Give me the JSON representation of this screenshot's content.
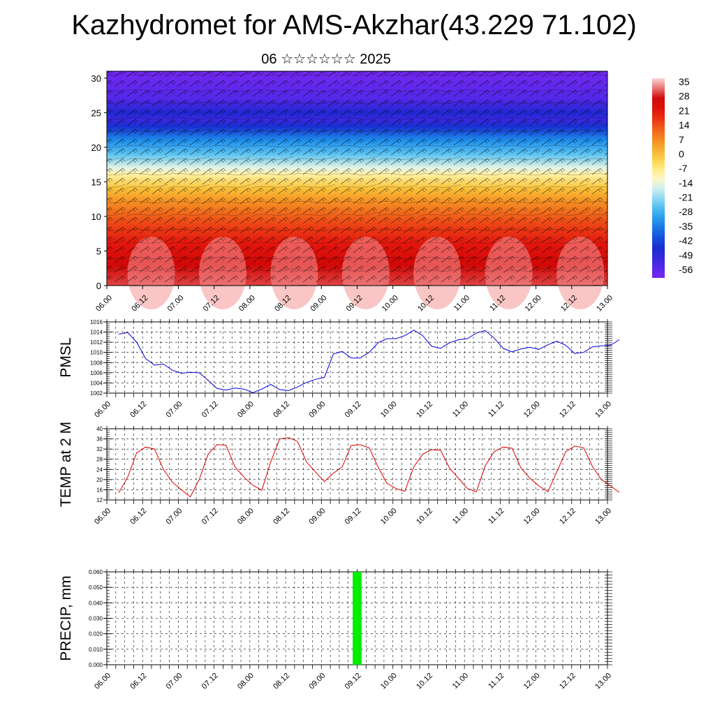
{
  "title": "Kazhydromet for AMS-Akzhar(43.229 71.102)",
  "subtitle": "06 ☆☆☆☆☆☆ 2025",
  "colors": {
    "pmsl_line": "#0000dd",
    "temp_line": "#dd0000",
    "precip_bar": "#00ee00",
    "grid": "#000000"
  },
  "chart_data": [
    {
      "type": "heatmap",
      "title": "",
      "xlabel": "",
      "ylabel": "",
      "xtick_labels": [
        "06.00",
        "06.12",
        "07.00",
        "07.12",
        "08.00",
        "08.12",
        "09.00",
        "09.12",
        "10.00",
        "10.12",
        "11.00",
        "11.12",
        "12.00",
        "12.12",
        "13.00"
      ],
      "ytick_labels": [
        "0",
        "5",
        "10",
        "15",
        "20",
        "25",
        "30"
      ],
      "ylim": [
        0,
        31
      ],
      "colorbar_labels": [
        "35",
        "28",
        "21",
        "14",
        "7",
        "0",
        "-7",
        "-14",
        "-21",
        "-28",
        "-35",
        "-42",
        "-49",
        "-56"
      ],
      "colorbar_range": [
        -59,
        38
      ],
      "temperature_profile": {
        "heights": [
          0,
          3,
          6,
          9,
          12,
          14,
          16,
          17,
          19,
          21,
          23,
          24,
          25,
          27,
          31
        ],
        "values": [
          31,
          27,
          22,
          16,
          8,
          1,
          -8,
          -14,
          -24,
          -32,
          -44,
          -50,
          -46,
          -54,
          -58
        ]
      },
      "overlay": "wind barbs"
    },
    {
      "type": "line",
      "title": "",
      "ylabel": "PMSL",
      "xtick_labels": [
        "06.00",
        "06.12",
        "07.00",
        "07.12",
        "08.00",
        "08.12",
        "09.00",
        "09.12",
        "10.00",
        "10.12",
        "11.00",
        "11.12",
        "12.00",
        "12.12",
        "13.00"
      ],
      "ytick_labels": [
        "1002",
        "1004",
        "1006",
        "1008",
        "1010",
        "1012",
        "1014",
        "1016"
      ],
      "ylim": [
        1002,
        1016
      ],
      "x_hours_step": 3,
      "series": [
        {
          "values": [
            1013.6,
            1013.9,
            1012.0,
            1008.8,
            1007.5,
            1007.7,
            1006.5,
            1005.9,
            1006.1,
            1006.0,
            1004.5,
            1002.9,
            1002.6,
            1003.0,
            1002.8,
            1002.1,
            1002.8,
            1003.7,
            1002.7,
            1002.5,
            1003.2,
            1004.1,
            1004.7,
            1005.1,
            1009.7,
            1010.2,
            1008.9,
            1008.9,
            1010.0,
            1011.9,
            1012.7,
            1012.7,
            1013.3,
            1014.4,
            1013.3,
            1011.2,
            1010.8,
            1011.9,
            1012.5,
            1012.7,
            1013.8,
            1014.3,
            1012.8,
            1010.8,
            1010.1,
            1010.7,
            1011.0,
            1010.6,
            1011.5,
            1012.2,
            1011.4,
            1009.8,
            1010.0,
            1011.1,
            1011.3,
            1011.4,
            1012.5
          ]
        }
      ]
    },
    {
      "type": "line",
      "title": "",
      "ylabel": "TEMP at 2 M",
      "xtick_labels": [
        "06.00",
        "06.12",
        "07.00",
        "07.12",
        "08.00",
        "08.12",
        "09.00",
        "09.12",
        "10.00",
        "10.12",
        "11.00",
        "11.12",
        "12.00",
        "12.12",
        "13.00"
      ],
      "ytick_labels": [
        "12",
        "16",
        "20",
        "24",
        "28",
        "32",
        "36",
        "40"
      ],
      "ylim": [
        12,
        40
      ],
      "x_hours_step": 3,
      "series": [
        {
          "values": [
            14.8,
            21.0,
            30.5,
            32.8,
            32.0,
            24.0,
            19.0,
            16.0,
            13.2,
            20.0,
            30.0,
            33.8,
            33.5,
            25.0,
            21.0,
            17.8,
            15.8,
            27.0,
            36.0,
            36.5,
            35.0,
            27.0,
            23.0,
            19.2,
            22.5,
            25.0,
            33.5,
            33.7,
            32.5,
            25.0,
            18.5,
            16.5,
            15.4,
            25.0,
            30.0,
            31.8,
            31.5,
            24.5,
            20.5,
            16.5,
            15.2,
            25.5,
            31.0,
            32.8,
            32.3,
            24.5,
            20.5,
            17.5,
            15.2,
            23.0,
            31.0,
            33.2,
            32.5,
            25.0,
            20.0,
            17.5,
            15.0
          ]
        }
      ]
    },
    {
      "type": "bar",
      "title": "",
      "ylabel": "PRECIP, mm",
      "xtick_labels": [
        "06.00",
        "06.12",
        "07.00",
        "07.12",
        "08.00",
        "08.12",
        "09.00",
        "09.12",
        "10.00",
        "10.12",
        "11.00",
        "11.12",
        "12.00",
        "12.12",
        "13.00"
      ],
      "ytick_labels": [
        "0.000",
        "0.010",
        "0.020",
        "0.030",
        "0.040",
        "0.050",
        "0.060"
      ],
      "ylim": [
        0,
        0.06
      ],
      "x_hours_step": 3,
      "bars": [
        {
          "hour": 84,
          "value": 0.06
        }
      ]
    }
  ]
}
